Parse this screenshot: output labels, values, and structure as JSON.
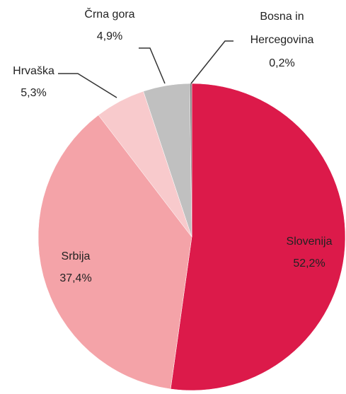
{
  "chart_data": {
    "type": "pie",
    "categories": [
      "Slovenija",
      "Srbija",
      "Hrvaška",
      "Črna gora",
      "Bosna in Hercegovina"
    ],
    "values": [
      52.2,
      37.4,
      5.3,
      4.9,
      0.2
    ],
    "value_labels": [
      "52,2%",
      "37,4%",
      "5,3%",
      "4,9%",
      "0,2%"
    ],
    "colors": [
      "#dc1a4a",
      "#f4a3a8",
      "#f8cacc",
      "#c0c0c0",
      "#7f7f7f"
    ]
  }
}
